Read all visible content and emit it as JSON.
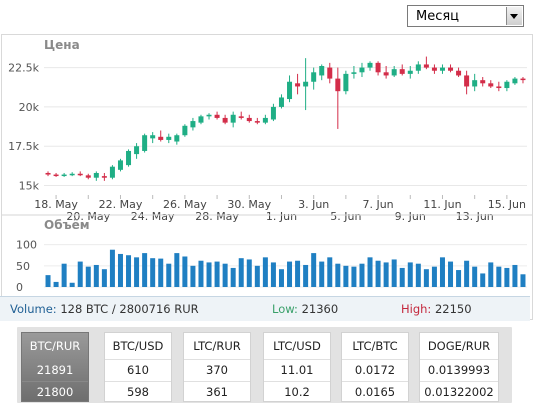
{
  "period_select": {
    "value": "Месяц"
  },
  "chart_data": [
    {
      "type": "candlestick",
      "title": "Цена",
      "y_ticks": [
        15000,
        17500,
        20000,
        22500
      ],
      "y_tick_labels": [
        "15k",
        "17.5k",
        "20k",
        "22.5k"
      ],
      "ylim": [
        14400,
        23300
      ],
      "x_tick_labels_top": [
        "18. May",
        "22. May",
        "26. May",
        "30. May",
        "3. Jun",
        "7. Jun",
        "11. Jun",
        "15. Jun"
      ],
      "x_tick_labels_bottom": [
        "20. May",
        "24. May",
        "28. May",
        "1. Jun",
        "5. Jun",
        "9. Jun",
        "13. Jun"
      ],
      "candles": [
        {
          "o": 15800,
          "h": 15900,
          "l": 15600,
          "c": 15700
        },
        {
          "o": 15700,
          "h": 15800,
          "l": 15550,
          "c": 15650
        },
        {
          "o": 15650,
          "h": 15800,
          "l": 15550,
          "c": 15700
        },
        {
          "o": 15700,
          "h": 15850,
          "l": 15600,
          "c": 15750
        },
        {
          "o": 15750,
          "h": 15900,
          "l": 15600,
          "c": 15700
        },
        {
          "o": 15650,
          "h": 15750,
          "l": 15400,
          "c": 15500
        },
        {
          "o": 15500,
          "h": 15900,
          "l": 15300,
          "c": 15800
        },
        {
          "o": 15600,
          "h": 15800,
          "l": 15300,
          "c": 15500
        },
        {
          "o": 15500,
          "h": 16300,
          "l": 15400,
          "c": 16200
        },
        {
          "o": 16000,
          "h": 16700,
          "l": 15900,
          "c": 16600
        },
        {
          "o": 16300,
          "h": 17300,
          "l": 16200,
          "c": 17200
        },
        {
          "o": 17000,
          "h": 17700,
          "l": 16700,
          "c": 17500
        },
        {
          "o": 17200,
          "h": 18300,
          "l": 17100,
          "c": 18200
        },
        {
          "o": 18000,
          "h": 18400,
          "l": 17700,
          "c": 18200
        },
        {
          "o": 18100,
          "h": 18500,
          "l": 17800,
          "c": 17900
        },
        {
          "o": 17900,
          "h": 18300,
          "l": 17700,
          "c": 18100
        },
        {
          "o": 17800,
          "h": 18300,
          "l": 17600,
          "c": 18200
        },
        {
          "o": 18200,
          "h": 18900,
          "l": 18100,
          "c": 18800
        },
        {
          "o": 18700,
          "h": 19300,
          "l": 18500,
          "c": 19100
        },
        {
          "o": 19000,
          "h": 19500,
          "l": 18900,
          "c": 19400
        },
        {
          "o": 19400,
          "h": 19600,
          "l": 19200,
          "c": 19500
        },
        {
          "o": 19500,
          "h": 19700,
          "l": 19200,
          "c": 19300
        },
        {
          "o": 19300,
          "h": 19500,
          "l": 18900,
          "c": 19000
        },
        {
          "o": 19000,
          "h": 19700,
          "l": 18700,
          "c": 19500
        },
        {
          "o": 19400,
          "h": 19700,
          "l": 19200,
          "c": 19300
        },
        {
          "o": 19300,
          "h": 19500,
          "l": 19000,
          "c": 19100
        },
        {
          "o": 19100,
          "h": 19300,
          "l": 18900,
          "c": 19000
        },
        {
          "o": 19000,
          "h": 19500,
          "l": 18900,
          "c": 19300
        },
        {
          "o": 19200,
          "h": 20200,
          "l": 19100,
          "c": 20000
        },
        {
          "o": 20000,
          "h": 20800,
          "l": 19900,
          "c": 20600
        },
        {
          "o": 20500,
          "h": 22000,
          "l": 20300,
          "c": 21600
        },
        {
          "o": 21500,
          "h": 22100,
          "l": 20800,
          "c": 21300
        },
        {
          "o": 21300,
          "h": 23100,
          "l": 19800,
          "c": 21600
        },
        {
          "o": 21600,
          "h": 22500,
          "l": 21100,
          "c": 22200
        },
        {
          "o": 22000,
          "h": 22700,
          "l": 21700,
          "c": 22600
        },
        {
          "o": 22500,
          "h": 22800,
          "l": 21500,
          "c": 21800
        },
        {
          "o": 21800,
          "h": 22500,
          "l": 18600,
          "c": 21000
        },
        {
          "o": 21000,
          "h": 22300,
          "l": 20800,
          "c": 22100
        },
        {
          "o": 22100,
          "h": 22600,
          "l": 21800,
          "c": 22200
        },
        {
          "o": 22200,
          "h": 22800,
          "l": 21900,
          "c": 22500
        },
        {
          "o": 22500,
          "h": 22900,
          "l": 22300,
          "c": 22800
        },
        {
          "o": 22800,
          "h": 22900,
          "l": 22000,
          "c": 22200
        },
        {
          "o": 22200,
          "h": 22600,
          "l": 21800,
          "c": 22000
        },
        {
          "o": 22000,
          "h": 22600,
          "l": 21900,
          "c": 22400
        },
        {
          "o": 22400,
          "h": 22700,
          "l": 22000,
          "c": 22100
        },
        {
          "o": 22100,
          "h": 22600,
          "l": 21800,
          "c": 22300
        },
        {
          "o": 22300,
          "h": 22900,
          "l": 22100,
          "c": 22700
        },
        {
          "o": 22700,
          "h": 23200,
          "l": 22400,
          "c": 22500
        },
        {
          "o": 22500,
          "h": 22700,
          "l": 22100,
          "c": 22300
        },
        {
          "o": 22300,
          "h": 22700,
          "l": 22100,
          "c": 22500
        },
        {
          "o": 22500,
          "h": 22700,
          "l": 22200,
          "c": 22300
        },
        {
          "o": 22300,
          "h": 22500,
          "l": 21900,
          "c": 22000
        },
        {
          "o": 22000,
          "h": 22300,
          "l": 20800,
          "c": 21300
        },
        {
          "o": 21300,
          "h": 22100,
          "l": 21000,
          "c": 21700
        },
        {
          "o": 21700,
          "h": 21900,
          "l": 21300,
          "c": 21500
        },
        {
          "o": 21500,
          "h": 21700,
          "l": 21200,
          "c": 21300
        },
        {
          "o": 21300,
          "h": 21600,
          "l": 21000,
          "c": 21200
        },
        {
          "o": 21200,
          "h": 21700,
          "l": 21000,
          "c": 21600
        },
        {
          "o": 21500,
          "h": 21900,
          "l": 21400,
          "c": 21800
        },
        {
          "o": 21800,
          "h": 21900,
          "l": 21500,
          "c": 21750
        }
      ],
      "colors": {
        "up": "#1fae85",
        "down": "#d32d49"
      }
    },
    {
      "type": "bar",
      "title": "Объём",
      "y_ticks": [
        0,
        50,
        100
      ],
      "y_tick_labels": [
        "0",
        "50",
        "100"
      ],
      "ylim": [
        0,
        118
      ],
      "color": "#1f7fc2",
      "values": [
        28,
        12,
        55,
        10,
        60,
        48,
        52,
        42,
        88,
        78,
        75,
        70,
        80,
        68,
        67,
        55,
        80,
        72,
        50,
        62,
        58,
        60,
        55,
        45,
        68,
        65,
        50,
        70,
        58,
        42,
        60,
        62,
        52,
        80,
        60,
        70,
        55,
        50,
        48,
        55,
        70,
        62,
        58,
        65,
        45,
        58,
        55,
        42,
        48,
        70,
        60,
        40,
        62,
        48,
        32,
        58,
        48,
        45,
        52,
        30
      ]
    }
  ],
  "stats": {
    "volume_label": "Volume:",
    "volume_value": "128 BTC / 2800716 RUR",
    "low_label": "Low:",
    "low_value": "21360",
    "high_label": "High:",
    "high_value": "22150"
  },
  "tickers": [
    {
      "pair": "BTC/RUR",
      "v1": "21891",
      "v2": "21800",
      "active": true
    },
    {
      "pair": "BTC/USD",
      "v1": "610",
      "v2": "598",
      "active": false
    },
    {
      "pair": "LTC/RUR",
      "v1": "370",
      "v2": "361",
      "active": false
    },
    {
      "pair": "LTC/USD",
      "v1": "11.01",
      "v2": "10.2",
      "active": false
    },
    {
      "pair": "LTC/BTC",
      "v1": "0.0172",
      "v2": "0.0165",
      "active": false
    },
    {
      "pair": "DOGE/RUR",
      "v1": "0.0139993",
      "v2": "0.01322002",
      "active": false
    }
  ]
}
